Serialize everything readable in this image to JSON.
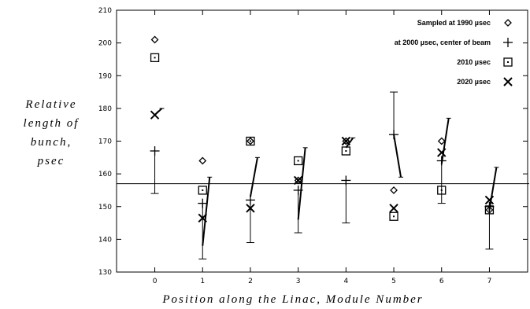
{
  "chart_data": {
    "type": "scatter",
    "title": "",
    "xlabel": "Position along the Linac, Module Number",
    "ylabel_lines": [
      "Relative",
      "length of",
      "bunch,",
      "psec"
    ],
    "xlim": [
      -0.8,
      7.8
    ],
    "ylim": [
      130,
      210
    ],
    "x_ticks": [
      0,
      1,
      2,
      3,
      4,
      5,
      6,
      7
    ],
    "y_ticks": [
      130,
      140,
      150,
      160,
      170,
      180,
      190,
      200,
      210
    ],
    "reference_line_y": 157,
    "legend_position": "top-right",
    "series": [
      {
        "name": "Sampled at 1990 µsec",
        "marker": "diamond",
        "x": [
          0,
          1,
          2,
          3,
          4,
          5,
          6,
          7
        ],
        "y": [
          201,
          164,
          170,
          158,
          170,
          155,
          170,
          149
        ]
      },
      {
        "name": "at 2000 µsec, center of beam",
        "marker": "plus",
        "x": [
          0,
          1,
          2,
          3,
          4,
          5,
          6,
          7
        ],
        "y": [
          167,
          151,
          152,
          155,
          158,
          172,
          164,
          150
        ],
        "err_low": [
          154,
          134,
          139,
          142,
          145,
          null,
          151,
          137
        ],
        "err_high": [
          null,
          null,
          null,
          null,
          null,
          185,
          null,
          null
        ]
      },
      {
        "name": "2010 µsec",
        "marker": "square",
        "x": [
          0,
          1,
          2,
          3,
          4,
          5,
          6,
          7
        ],
        "y": [
          195.5,
          155,
          170,
          164,
          167,
          147,
          155,
          149
        ]
      },
      {
        "name": "2020 µsec",
        "marker": "cross",
        "x": [
          0,
          1,
          2,
          3,
          4,
          5,
          6,
          7
        ],
        "y": [
          178,
          146.5,
          149.5,
          158,
          170,
          149.5,
          166.5,
          152
        ]
      }
    ],
    "trend_segments": [
      {
        "x": 0,
        "from": 178,
        "to": 180
      },
      {
        "x": 1,
        "from": 138,
        "to": 159
      },
      {
        "x": 2,
        "from": 153,
        "to": 165
      },
      {
        "x": 3,
        "from": 146,
        "to": 168
      },
      {
        "x": 4,
        "from": 168,
        "to": 171
      },
      {
        "x": 5,
        "from": 172,
        "to": 159
      },
      {
        "x": 6,
        "from": 163,
        "to": 177
      },
      {
        "x": 7,
        "from": 149,
        "to": 162
      }
    ]
  }
}
